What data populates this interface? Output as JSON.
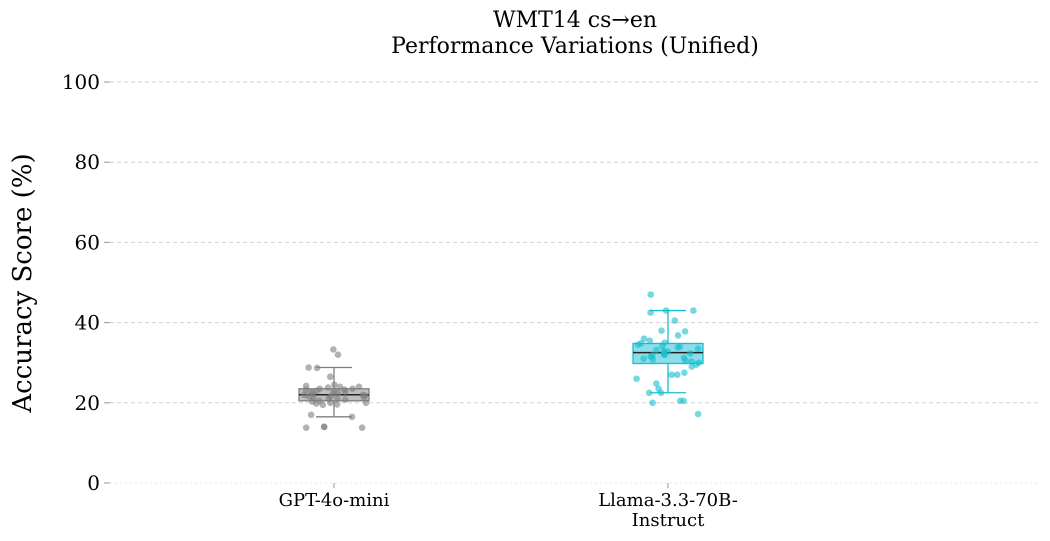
{
  "chart_data": {
    "type": "box",
    "title_lines": [
      "WMT14 cs→en",
      "Performance Variations (Unified)"
    ],
    "xlabel": "",
    "ylabel": "Accuracy Score (%)",
    "ylim": [
      0,
      100
    ],
    "yticks": [
      0,
      20,
      40,
      60,
      80,
      100
    ],
    "grid": true,
    "categories": [
      {
        "label_lines": [
          "GPT-4o-mini"
        ]
      },
      {
        "label_lines": [
          "Llama-3.3-70B-",
          "Instruct"
        ]
      }
    ],
    "series": [
      {
        "category": "GPT-4o-mini",
        "color": "#7f7f7f",
        "box": {
          "whisker_low": 16.5,
          "q1": 20.5,
          "median": 22,
          "q3": 23.5,
          "whisker_high": 28.8
        },
        "points": [
          33.3,
          32.0,
          28.8,
          28.7,
          26.5,
          24.5,
          24.2,
          24.0,
          24.0,
          23.8,
          23.5,
          23.5,
          23.3,
          23.2,
          23.0,
          23.0,
          22.8,
          22.6,
          22.5,
          22.3,
          22.2,
          22.0,
          22.0,
          21.8,
          21.6,
          21.5,
          21.3,
          21.2,
          21.0,
          21.0,
          20.8,
          20.5,
          20.3,
          20.0,
          20.0,
          19.8,
          19.6,
          19.5,
          17.0,
          16.5,
          14.0,
          14.0,
          13.8,
          13.8
        ]
      },
      {
        "category": "Llama-3.3-70B-Instruct",
        "color": "#17becf",
        "box": {
          "whisker_low": 22.5,
          "q1": 29.8,
          "median": 32.5,
          "q3": 34.8,
          "whisker_high": 43.0
        },
        "points": [
          47.0,
          43.0,
          43.0,
          42.5,
          40.5,
          38.0,
          37.8,
          36.8,
          36.0,
          35.5,
          35.0,
          34.8,
          34.5,
          34.2,
          34.0,
          33.8,
          33.5,
          33.2,
          33.0,
          32.8,
          32.5,
          32.3,
          32.0,
          32.0,
          31.8,
          31.5,
          31.2,
          31.0,
          30.8,
          30.5,
          30.3,
          30.0,
          29.5,
          29.0,
          27.5,
          27.0,
          27.0,
          26.0,
          24.8,
          23.5,
          22.5,
          22.5,
          20.5,
          20.5,
          20.0,
          17.2
        ]
      }
    ]
  }
}
